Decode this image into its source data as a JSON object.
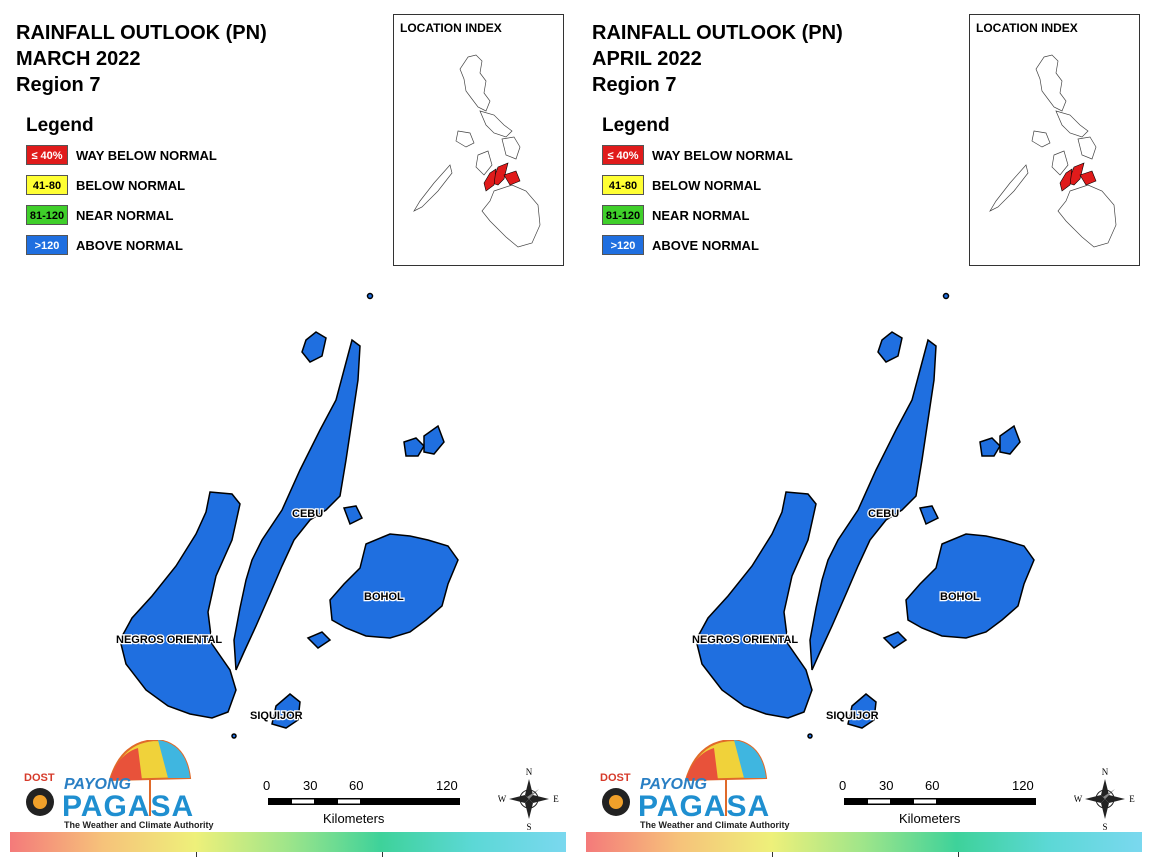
{
  "panels": [
    {
      "title_lines": [
        "RAINFALL OUTLOOK (PN)",
        "MARCH 2022",
        "Region 7"
      ],
      "legend_title": "Legend",
      "legend": [
        {
          "range": "≤ 40%",
          "label": "WAY BELOW NORMAL",
          "color": "#e01b1b",
          "text_color": "#ffffff"
        },
        {
          "range": "41-80",
          "label": "BELOW NORMAL",
          "color": "#ffff33",
          "text_color": "#000000"
        },
        {
          "range": "81-120",
          "label": "NEAR NORMAL",
          "color": "#3fcf2a",
          "text_color": "#000000"
        },
        {
          "range": ">120",
          "label": "ABOVE NORMAL",
          "color": "#1f6fe0",
          "text_color": "#ffffff"
        }
      ],
      "location_index_title": "LOCATION INDEX",
      "provinces": [
        {
          "name": "CEBU",
          "category": "ABOVE NORMAL"
        },
        {
          "name": "BOHOL",
          "category": "ABOVE NORMAL"
        },
        {
          "name": "NEGROS ORIENTAL",
          "category": "ABOVE NORMAL"
        },
        {
          "name": "SIQUIJOR",
          "category": "ABOVE NORMAL"
        }
      ],
      "scale": {
        "ticks": [
          "0",
          "30",
          "60",
          "120"
        ],
        "units": "Kilometers"
      },
      "compass": {
        "n": "N",
        "e": "E",
        "s": "S",
        "w": "W"
      },
      "logo": {
        "dost": "DOST",
        "payong": "PAYONG",
        "pagasa": "PAGASA",
        "tagline": "The Weather and Climate Authority"
      }
    },
    {
      "title_lines": [
        "RAINFALL OUTLOOK (PN)",
        "APRIL 2022",
        "Region 7"
      ],
      "legend_title": "Legend",
      "legend": [
        {
          "range": "≤ 40%",
          "label": "WAY BELOW NORMAL",
          "color": "#e01b1b",
          "text_color": "#ffffff"
        },
        {
          "range": "41-80",
          "label": "BELOW NORMAL",
          "color": "#ffff33",
          "text_color": "#000000"
        },
        {
          "range": "81-120",
          "label": "NEAR NORMAL",
          "color": "#3fcf2a",
          "text_color": "#000000"
        },
        {
          "range": ">120",
          "label": "ABOVE NORMAL",
          "color": "#1f6fe0",
          "text_color": "#ffffff"
        }
      ],
      "location_index_title": "LOCATION INDEX",
      "provinces": [
        {
          "name": "CEBU",
          "category": "ABOVE NORMAL"
        },
        {
          "name": "BOHOL",
          "category": "ABOVE NORMAL"
        },
        {
          "name": "NEGROS ORIENTAL",
          "category": "ABOVE NORMAL"
        },
        {
          "name": "SIQUIJOR",
          "category": "ABOVE NORMAL"
        }
      ],
      "scale": {
        "ticks": [
          "0",
          "30",
          "60",
          "120"
        ],
        "units": "Kilometers"
      },
      "compass": {
        "n": "N",
        "e": "E",
        "s": "S",
        "w": "W"
      },
      "logo": {
        "dost": "DOST",
        "payong": "PAYONG",
        "pagasa": "PAGASA",
        "tagline": "The Weather and Climate Authority"
      }
    }
  ],
  "colors": {
    "land": "#1f6fe0",
    "outline": "#000000",
    "highlight": "#e01b1b"
  }
}
